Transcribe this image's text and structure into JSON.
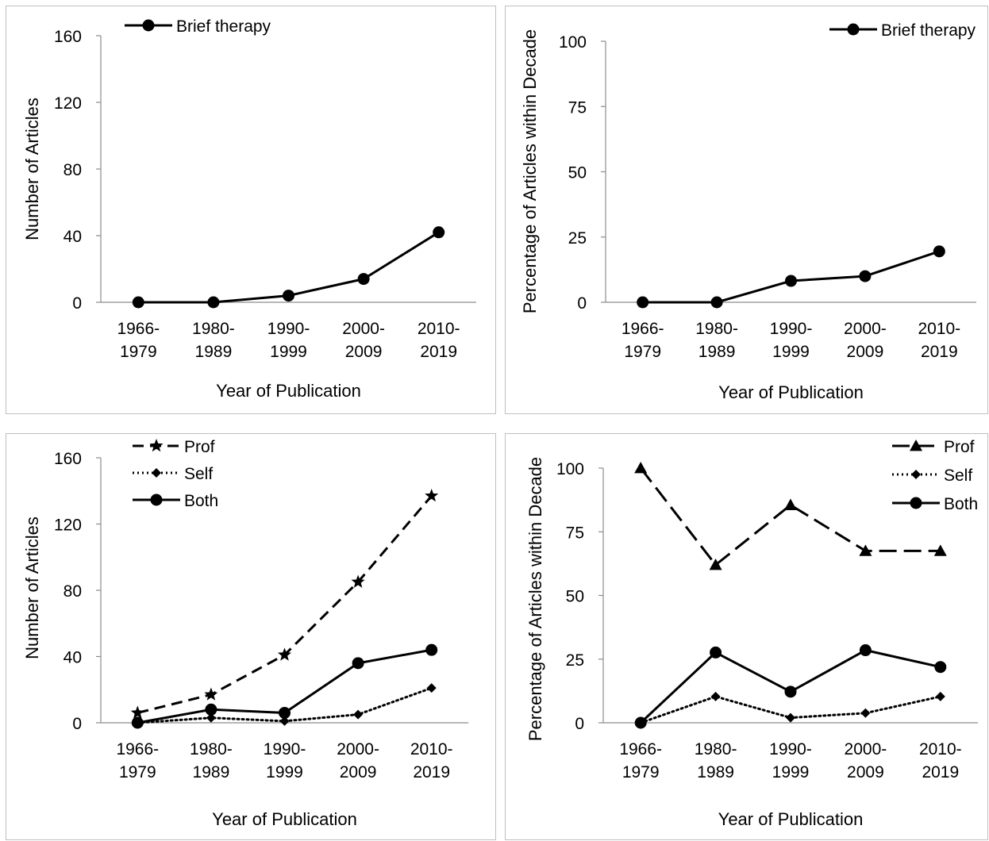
{
  "chart_data": [
    {
      "type": "line",
      "categories": [
        "1966-1979",
        "1980-1989",
        "1990-1999",
        "2000-2009",
        "2010-2019"
      ],
      "category_lines": [
        [
          "1966-",
          "1979"
        ],
        [
          "1980-",
          "1989"
        ],
        [
          "1990-",
          "1999"
        ],
        [
          "2000-",
          "2009"
        ],
        [
          "2010-",
          "2019"
        ]
      ],
      "series": [
        {
          "name": "Brief therapy",
          "values": [
            0,
            0,
            4,
            14,
            42
          ],
          "marker": "circle",
          "dash": "solid"
        }
      ],
      "xlabel": "Year of Publication",
      "ylabel": "Number of Articles",
      "ylim": [
        0,
        160
      ],
      "yticks": [
        0,
        40,
        80,
        120,
        160
      ],
      "grid": false,
      "legend": "top-left"
    },
    {
      "type": "line",
      "categories": [
        "1966-1979",
        "1980-1989",
        "1990-1999",
        "2000-2009",
        "2010-2019"
      ],
      "category_lines": [
        [
          "1966-",
          "1979"
        ],
        [
          "1980-",
          "1989"
        ],
        [
          "1990-",
          "1999"
        ],
        [
          "2000-",
          "2009"
        ],
        [
          "2010-",
          "2019"
        ]
      ],
      "series": [
        {
          "name": "Brief therapy",
          "values": [
            0,
            0,
            8.2,
            10,
            19.5
          ],
          "marker": "circle",
          "dash": "solid"
        }
      ],
      "xlabel": "Year of Publication",
      "ylabel": "Percentage of Articles within Decade",
      "ylim": [
        0,
        100
      ],
      "yticks": [
        0,
        25,
        50,
        75,
        100
      ],
      "grid": false,
      "legend": "top-right"
    },
    {
      "type": "line",
      "categories": [
        "1966-1979",
        "1980-1989",
        "1990-1999",
        "2000-2009",
        "2010-2019"
      ],
      "category_lines": [
        [
          "1966-",
          "1979"
        ],
        [
          "1980-",
          "1989"
        ],
        [
          "1990-",
          "1999"
        ],
        [
          "2000-",
          "2009"
        ],
        [
          "2010-",
          "2019"
        ]
      ],
      "series": [
        {
          "name": "Prof",
          "values": [
            6,
            17,
            41,
            85,
            137
          ],
          "marker": "star",
          "dash": "dashed"
        },
        {
          "name": "Self",
          "values": [
            0,
            3,
            1,
            5,
            21
          ],
          "marker": "diamond",
          "dash": "dotted"
        },
        {
          "name": "Both",
          "values": [
            0,
            8,
            6,
            36,
            44
          ],
          "marker": "circle",
          "dash": "solid"
        }
      ],
      "xlabel": "Year of Publication",
      "ylabel": "Number of Articles",
      "ylim": [
        0,
        160
      ],
      "yticks": [
        0,
        40,
        80,
        120,
        160
      ],
      "grid": false,
      "legend": "top-left"
    },
    {
      "type": "line",
      "categories": [
        "1966-1979",
        "1980-1989",
        "1990-1999",
        "2000-2009",
        "2010-2019"
      ],
      "category_lines": [
        [
          "1966-",
          "1979"
        ],
        [
          "1980-",
          "1989"
        ],
        [
          "1990-",
          "1999"
        ],
        [
          "2000-",
          "2009"
        ],
        [
          "2010-",
          "2019"
        ]
      ],
      "series": [
        {
          "name": "Prof",
          "values": [
            100,
            62,
            85.5,
            67.5,
            67.5
          ],
          "marker": "triangle",
          "dash": "longdash"
        },
        {
          "name": "Self",
          "values": [
            0,
            10.3,
            2,
            3.8,
            10.3
          ],
          "marker": "diamond",
          "dash": "dotted"
        },
        {
          "name": "Both",
          "values": [
            0,
            27.6,
            12.2,
            28.5,
            21.9
          ],
          "marker": "circle",
          "dash": "solid"
        }
      ],
      "xlabel": "Year of Publication",
      "ylabel": "Percentage of Articles within Decade",
      "ylim": [
        0,
        100
      ],
      "yticks": [
        0,
        25,
        50,
        75,
        100
      ],
      "grid": false,
      "legend": "top-right"
    }
  ]
}
